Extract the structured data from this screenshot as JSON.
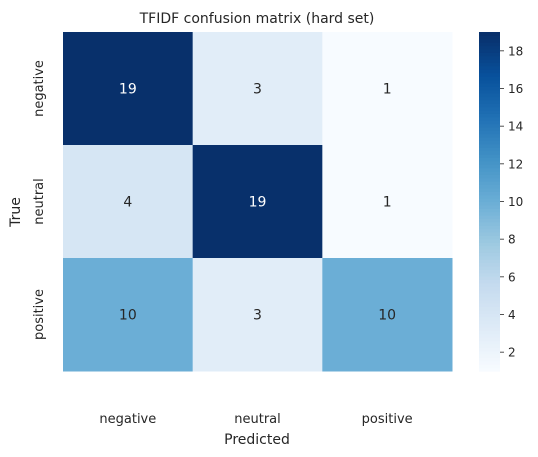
{
  "chart_data": {
    "type": "heatmap",
    "title": "TFIDF confusion matrix (hard set)",
    "xlabel": "Predicted",
    "ylabel": "True",
    "x_categories": [
      "negative",
      "neutral",
      "positive"
    ],
    "y_categories": [
      "negative",
      "neutral",
      "positive"
    ],
    "values": [
      [
        19,
        3,
        1
      ],
      [
        4,
        19,
        1
      ],
      [
        10,
        3,
        10
      ]
    ],
    "colormap": "Blues",
    "vmin": 1,
    "vmax": 19,
    "colorbar_ticks": [
      2,
      4,
      6,
      8,
      10,
      12,
      14,
      16,
      18
    ],
    "grid": false
  }
}
